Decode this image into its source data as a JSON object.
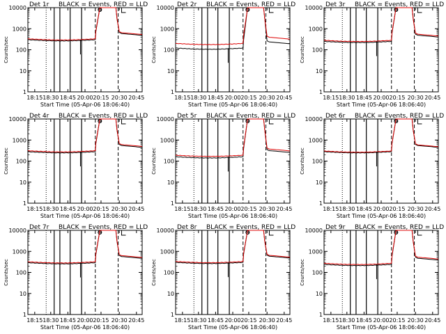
{
  "common": {
    "xlabel": "Start Time (05-Apr-06 18:06:40)",
    "ylabel": "Counts/sec",
    "x_ticks": [
      "18:15",
      "18:30",
      "18:45",
      "20:00",
      "20:15",
      "20:30",
      "20:45"
    ],
    "y_ticks": [
      "1",
      "10",
      "100",
      "1000",
      "10000"
    ],
    "yscale": "log",
    "ylim": [
      1,
      10000
    ],
    "legend_text": "BLACK = Events, RED = LLD",
    "markers": [
      "S",
      "E"
    ]
  },
  "colors": {
    "events": "#000000",
    "lld": "#dd0000",
    "axes": "#000000"
  },
  "chart_data": [
    {
      "type": "line",
      "title": "Det 1r",
      "series": [
        {
          "name": "Events",
          "color": "#000000",
          "level": 300
        },
        {
          "name": "LLD",
          "color": "#dd0000",
          "level": 330
        }
      ]
    },
    {
      "type": "line",
      "title": "Det 2r",
      "series": [
        {
          "name": "Events",
          "color": "#000000",
          "level": 120
        },
        {
          "name": "LLD",
          "color": "#dd0000",
          "level": 200
        }
      ]
    },
    {
      "type": "line",
      "title": "Det 3r",
      "series": [
        {
          "name": "Events",
          "color": "#000000",
          "level": 250
        },
        {
          "name": "LLD",
          "color": "#dd0000",
          "level": 280
        }
      ]
    },
    {
      "type": "line",
      "title": "Det 4r",
      "series": [
        {
          "name": "Events",
          "color": "#000000",
          "level": 280
        },
        {
          "name": "LLD",
          "color": "#dd0000",
          "level": 310
        }
      ]
    },
    {
      "type": "line",
      "title": "Det 5r",
      "series": [
        {
          "name": "Events",
          "color": "#000000",
          "level": 160
        },
        {
          "name": "LLD",
          "color": "#dd0000",
          "level": 190
        }
      ]
    },
    {
      "type": "line",
      "title": "Det 6r",
      "series": [
        {
          "name": "Events",
          "color": "#000000",
          "level": 280
        },
        {
          "name": "LLD",
          "color": "#dd0000",
          "level": 300
        }
      ]
    },
    {
      "type": "line",
      "title": "Det 7r",
      "series": [
        {
          "name": "Events",
          "color": "#000000",
          "level": 290
        },
        {
          "name": "LLD",
          "color": "#dd0000",
          "level": 320
        }
      ]
    },
    {
      "type": "line",
      "title": "Det 8r",
      "series": [
        {
          "name": "Events",
          "color": "#000000",
          "level": 300
        },
        {
          "name": "LLD",
          "color": "#dd0000",
          "level": 330
        }
      ]
    },
    {
      "type": "line",
      "title": "Det 9r",
      "series": [
        {
          "name": "Events",
          "color": "#000000",
          "level": 240
        },
        {
          "name": "LLD",
          "color": "#dd0000",
          "level": 270
        }
      ]
    }
  ]
}
